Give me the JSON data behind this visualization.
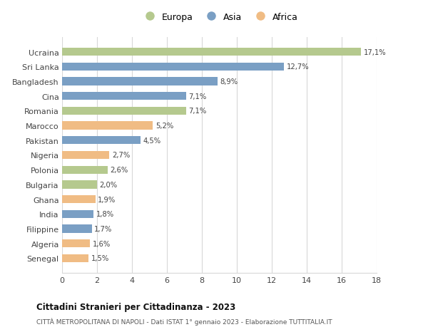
{
  "categories": [
    "Senegal",
    "Algeria",
    "Filippine",
    "India",
    "Ghana",
    "Bulgaria",
    "Polonia",
    "Nigeria",
    "Pakistan",
    "Marocco",
    "Romania",
    "Cina",
    "Bangladesh",
    "Sri Lanka",
    "Ucraina"
  ],
  "values": [
    1.5,
    1.6,
    1.7,
    1.8,
    1.9,
    2.0,
    2.6,
    2.7,
    4.5,
    5.2,
    7.1,
    7.1,
    8.9,
    12.7,
    17.1
  ],
  "continents": [
    "Africa",
    "Africa",
    "Asia",
    "Asia",
    "Africa",
    "Europa",
    "Europa",
    "Africa",
    "Asia",
    "Africa",
    "Europa",
    "Asia",
    "Asia",
    "Asia",
    "Europa"
  ],
  "colors": {
    "Europa": "#b5c98e",
    "Asia": "#7a9fc4",
    "Africa": "#f0bc84"
  },
  "labels": [
    "1,5%",
    "1,6%",
    "1,7%",
    "1,8%",
    "1,9%",
    "2,0%",
    "2,6%",
    "2,7%",
    "4,5%",
    "5,2%",
    "7,1%",
    "7,1%",
    "8,9%",
    "12,7%",
    "17,1%"
  ],
  "title": "Cittadini Stranieri per Cittadinanza - 2023",
  "subtitle": "CITTÀ METROPOLITANA DI NAPOLI - Dati ISTAT 1° gennaio 2023 - Elaborazione TUTTITALIA.IT",
  "xlim": [
    0,
    18
  ],
  "xticks": [
    0,
    2,
    4,
    6,
    8,
    10,
    12,
    14,
    16,
    18
  ],
  "background_color": "#ffffff",
  "grid_color": "#d8d8d8",
  "legend_labels": [
    "Europa",
    "Asia",
    "Africa"
  ],
  "bar_height": 0.55
}
